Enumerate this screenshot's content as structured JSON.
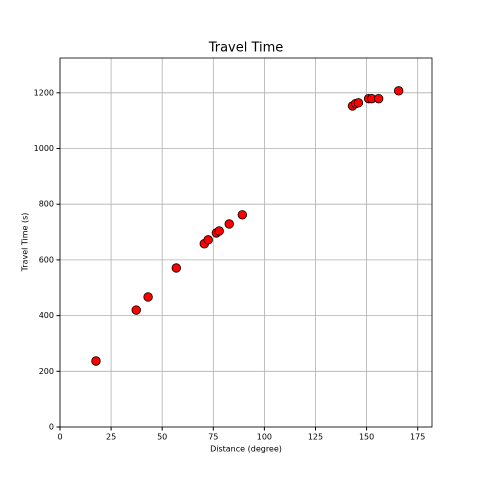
{
  "chart_data": {
    "type": "scatter",
    "title": "Travel Time",
    "xlabel": "Distance (degree)",
    "ylabel": "Travel Time (s)",
    "x": [
      17.6,
      37.3,
      43.1,
      56.9,
      70.6,
      72.5,
      76.5,
      77.9,
      82.8,
      89.2,
      143.1,
      144.6,
      146.0,
      151.0,
      152.5,
      155.9,
      165.7
    ],
    "series": [
      {
        "color": "#ff0000",
        "values": [
          237,
          420,
          467,
          571,
          658,
          672,
          697,
          704,
          729,
          762,
          1153,
          1161,
          1164,
          1179,
          1179,
          1179,
          1207
        ]
      }
    ],
    "xlim": [
      0,
      182
    ],
    "ylim": [
      0,
      1325
    ],
    "xticks": [
      0,
      25,
      50,
      75,
      100,
      125,
      150,
      175
    ],
    "yticks": [
      0,
      200,
      400,
      600,
      800,
      1000,
      1200
    ],
    "grid": true
  }
}
